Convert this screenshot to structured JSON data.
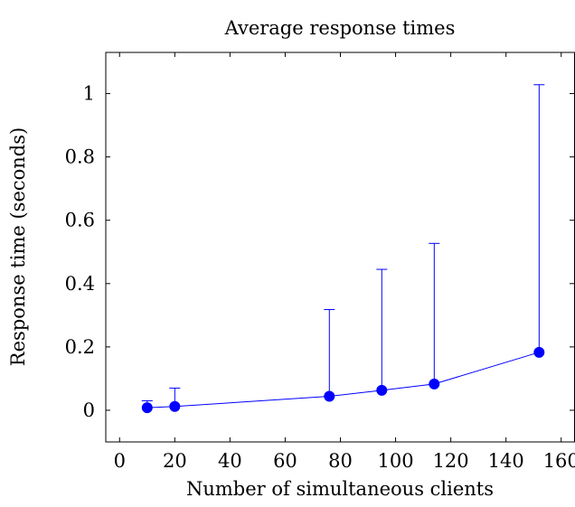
{
  "chart_data": {
    "type": "scatter",
    "title": "Average response times",
    "xlabel": "Number of simultaneous clients",
    "ylabel": "Response time (seconds)",
    "xlim": [
      -5,
      165
    ],
    "ylim": [
      -0.1,
      1.13
    ],
    "xticks": [
      0,
      20,
      40,
      60,
      80,
      100,
      120,
      140,
      160
    ],
    "yticks": [
      0,
      0.2,
      0.4,
      0.6,
      0.8,
      1
    ],
    "grid": false,
    "series": [
      {
        "color": "#0000ff",
        "marker": "filled-circle",
        "line": "solid",
        "points": [
          {
            "x": 10,
            "y": 0.008,
            "err_upper": 0.03
          },
          {
            "x": 20,
            "y": 0.012,
            "err_upper": 0.07
          },
          {
            "x": 76,
            "y": 0.044,
            "err_upper": 0.318
          },
          {
            "x": 95,
            "y": 0.063,
            "err_upper": 0.445
          },
          {
            "x": 114,
            "y": 0.083,
            "err_upper": 0.527
          },
          {
            "x": 152,
            "y": 0.183,
            "err_upper": 1.028
          }
        ]
      }
    ]
  }
}
